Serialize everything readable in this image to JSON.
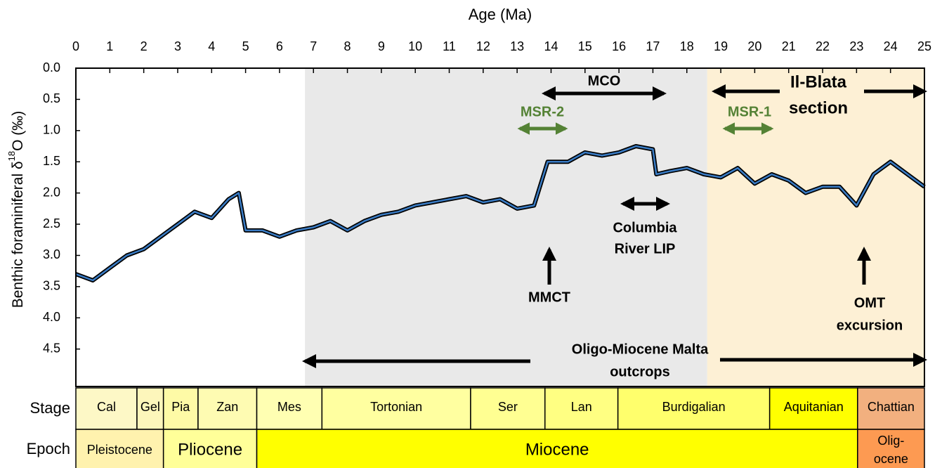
{
  "chart_data": {
    "type": "line",
    "xlabel": "Age (Ma)",
    "ylabel": {
      "prefix": "Benthic foraminiferal  δ",
      "sup": "18",
      "suffix": "O (‰)"
    },
    "xlim": [
      0,
      25
    ],
    "xticks": [
      0,
      1,
      2,
      3,
      4,
      5,
      6,
      7,
      8,
      9,
      10,
      11,
      12,
      13,
      14,
      15,
      16,
      17,
      18,
      19,
      20,
      21,
      22,
      23,
      24,
      25
    ],
    "ylim": [
      0,
      5.1
    ],
    "reverse_y": true,
    "yticks": [
      {
        "value": 0,
        "label": "0.0"
      },
      0.5,
      {
        "value": 1,
        "label": "1.0"
      },
      1.5,
      {
        "value": 2,
        "label": "2.0"
      },
      2.5,
      {
        "value": 3,
        "label": "3.0"
      },
      3.5,
      {
        "value": 4,
        "label": "4.0"
      },
      4.5
    ],
    "shaded_regions": [
      {
        "start": 6.75,
        "end": 18.6,
        "color": "#e9e9e9"
      },
      {
        "start": 18.6,
        "end": 25,
        "color": "#fdf0d5"
      }
    ],
    "series": [
      {
        "color": "#3a7cc5",
        "x": [
          0,
          0.5,
          1,
          1.5,
          2,
          2.5,
          3,
          3.5,
          4,
          4.5,
          4.8,
          5,
          5.5,
          6,
          6.5,
          7,
          7.5,
          8,
          8.5,
          9,
          9.5,
          10,
          10.5,
          11,
          11.5,
          12,
          12.5,
          13,
          13.5,
          13.9,
          14.5,
          15,
          15.5,
          16,
          16.5,
          17,
          17.1,
          17.5,
          18,
          18.5,
          19,
          19.5,
          20,
          20.5,
          21,
          21.5,
          22,
          22.5,
          23,
          23.5,
          24,
          24.5,
          25
        ],
        "values": [
          3.3,
          3.4,
          3.2,
          3.0,
          2.9,
          2.7,
          2.5,
          2.3,
          2.4,
          2.1,
          2.0,
          2.6,
          2.6,
          2.7,
          2.6,
          2.55,
          2.45,
          2.6,
          2.45,
          2.35,
          2.3,
          2.2,
          2.15,
          2.1,
          2.05,
          2.15,
          2.1,
          2.25,
          2.2,
          1.5,
          1.5,
          1.35,
          1.4,
          1.35,
          1.25,
          1.3,
          1.7,
          1.65,
          1.6,
          1.7,
          1.75,
          1.6,
          1.85,
          1.7,
          1.8,
          2.0,
          1.9,
          1.9,
          2.2,
          1.7,
          1.5,
          1.7,
          1.9
        ]
      }
    ],
    "annotations": [
      {
        "lines": [
          "MCO"
        ]
      },
      {
        "lines": [
          "MSR-2"
        ]
      },
      {
        "lines": [
          "MSR-1"
        ]
      },
      {
        "lines": [
          "Il-Blata",
          "section"
        ]
      },
      {
        "lines": [
          "Columbia",
          "River LIP"
        ]
      },
      {
        "lines": [
          "MMCT"
        ]
      },
      {
        "lines": [
          "OMT",
          "excursion"
        ]
      },
      {
        "lines": [
          "Oligo-Miocene Malta",
          "outcrops"
        ]
      }
    ],
    "stage_label": "Stage",
    "epoch_label": "Epoch",
    "stages": [
      {
        "name": "Cal",
        "start": 0,
        "end": 1.8,
        "color": "#fdf8c6"
      },
      {
        "name": "Gel",
        "start": 1.8,
        "end": 2.58,
        "color": "#fdf6bb"
      },
      {
        "name": "Pia",
        "start": 2.58,
        "end": 3.6,
        "color": "#fefaa6"
      },
      {
        "name": "Zan",
        "start": 3.6,
        "end": 5.33,
        "color": "#fefbb2"
      },
      {
        "name": "Mes",
        "start": 5.33,
        "end": 7.25,
        "color": "#ffffb2"
      },
      {
        "name": "Tortonian",
        "start": 7.25,
        "end": 11.63,
        "color": "#ffffa0"
      },
      {
        "name": "Ser",
        "start": 11.63,
        "end": 13.82,
        "color": "#ffff92"
      },
      {
        "name": "Lan",
        "start": 13.82,
        "end": 15.97,
        "color": "#ffff82"
      },
      {
        "name": "Burdigalian",
        "start": 15.97,
        "end": 20.44,
        "color": "#ffff6c"
      },
      {
        "name": "Aquitanian",
        "start": 20.44,
        "end": 23.03,
        "color": "#ffff00"
      },
      {
        "name": "Chattian",
        "start": 23.03,
        "end": 25,
        "color": "#f2b07f"
      }
    ],
    "epochs": [
      {
        "lines": [
          "Pleistocene"
        ],
        "start": 0,
        "end": 2.58,
        "color": "#fff2ae"
      },
      {
        "lines": [
          "Pliocene"
        ],
        "start": 2.58,
        "end": 5.33,
        "color": "#ffff99"
      },
      {
        "lines": [
          "Miocene"
        ],
        "start": 5.33,
        "end": 23.03,
        "color": "#ffff00"
      },
      {
        "lines": [
          "Olig-",
          "ocene"
        ],
        "start": 23.03,
        "end": 25,
        "color": "#fd9a52"
      }
    ]
  }
}
